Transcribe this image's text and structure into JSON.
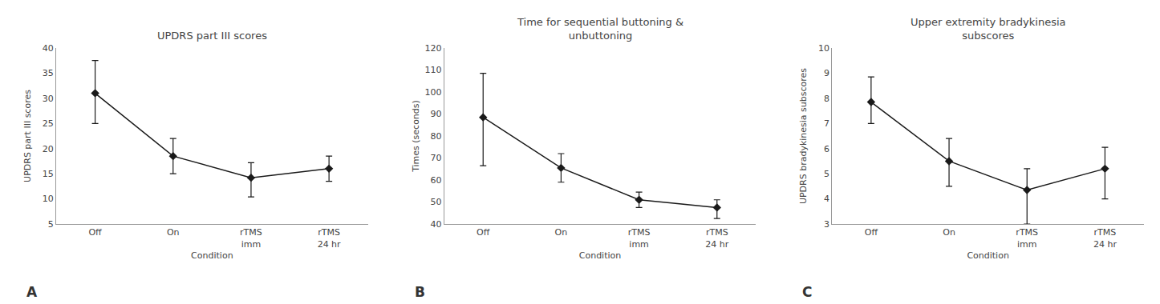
{
  "chart_data": [
    {
      "type": "line",
      "title": "UPDRS part III scores",
      "xlabel": "Condition",
      "ylabel": "UPDRS part III scores",
      "categories": [
        "Off",
        "On",
        "rTMS\nimm",
        "rTMS\n24 hr"
      ],
      "values": [
        31.0,
        18.5,
        14.2,
        16.0
      ],
      "error_plus": [
        6.5,
        3.5,
        3.0,
        2.5
      ],
      "error_minus": [
        6.0,
        3.5,
        3.8,
        2.5
      ],
      "ylim": [
        5,
        40
      ],
      "yticks": [
        5,
        10,
        15,
        20,
        25,
        30,
        35,
        40
      ],
      "color": "#1a1a1a",
      "marker": "diamond",
      "grid": false,
      "annotation": "A"
    },
    {
      "type": "line",
      "title": "Time for sequential buttoning &\nunbuttoning",
      "xlabel": "Condition",
      "ylabel": "Times (seconds)",
      "categories": [
        "Off",
        "On",
        "rTMS\nimm",
        "rTMS\n24 hr"
      ],
      "values": [
        88.5,
        65.5,
        51.0,
        47.5
      ],
      "error_plus": [
        20.0,
        6.5,
        3.5,
        3.5
      ],
      "error_minus": [
        22.0,
        6.5,
        3.5,
        5.0
      ],
      "ylim": [
        40,
        120
      ],
      "yticks": [
        40,
        50,
        60,
        70,
        80,
        90,
        100,
        110,
        120
      ],
      "color": "#1a1a1a",
      "marker": "diamond",
      "grid": false,
      "annotation": "B"
    },
    {
      "type": "line",
      "title": "Upper extremity bradykinesia\nsubscores",
      "xlabel": "Condition",
      "ylabel": "UPDRS bradykinesia subscores",
      "categories": [
        "Off",
        "On",
        "rTMS\nimm",
        "rTMS\n24 hr"
      ],
      "values": [
        7.85,
        5.5,
        4.35,
        5.2
      ],
      "error_plus": [
        1.0,
        0.9,
        0.85,
        0.85
      ],
      "error_minus": [
        0.85,
        1.0,
        1.35,
        1.2
      ],
      "ylim": [
        3,
        10
      ],
      "yticks": [
        3,
        4,
        5,
        6,
        7,
        8,
        9,
        10
      ],
      "color": "#1a1a1a",
      "marker": "diamond",
      "grid": false,
      "annotation": "C"
    }
  ]
}
